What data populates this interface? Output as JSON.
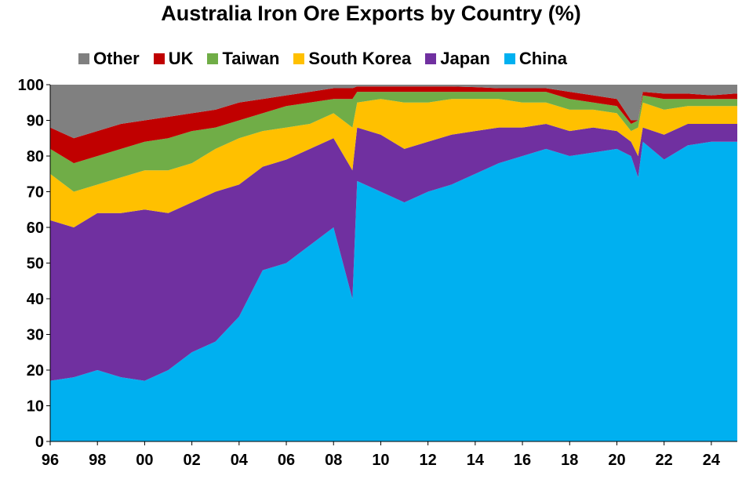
{
  "chart_data": {
    "type": "area",
    "stacked": true,
    "title": "Australia Iron Ore Exports by Country (%)",
    "xlabel": "",
    "ylabel": "",
    "xlim": [
      1996,
      2025.1
    ],
    "ylim": [
      0,
      100
    ],
    "yticks": [
      0,
      10,
      20,
      30,
      40,
      50,
      60,
      70,
      80,
      90,
      100
    ],
    "xtick_labels": [
      "96",
      "98",
      "00",
      "02",
      "04",
      "06",
      "08",
      "10",
      "12",
      "14",
      "16",
      "18",
      "20",
      "22",
      "24"
    ],
    "xtick_years": [
      1996,
      1998,
      2000,
      2002,
      2004,
      2006,
      2008,
      2010,
      2012,
      2014,
      2016,
      2018,
      2020,
      2022,
      2024
    ],
    "legend_position": "top",
    "x": [
      1996,
      1997,
      1998,
      1999,
      2000,
      2001,
      2002,
      2003,
      2004,
      2005,
      2006,
      2007,
      2008,
      2008.8,
      2009,
      2010,
      2011,
      2012,
      2013,
      2014,
      2015,
      2016,
      2017,
      2018,
      2019,
      2020,
      2020.6,
      2020.9,
      2021.1,
      2022,
      2023,
      2024,
      2025
    ],
    "series": [
      {
        "name": "China",
        "color": "#00b0f0",
        "values": [
          17,
          18,
          20,
          18,
          17,
          20,
          25,
          28,
          35,
          48,
          50,
          55,
          60,
          40,
          73,
          70,
          67,
          70,
          72,
          75,
          78,
          80,
          82,
          80,
          81,
          82,
          80,
          74,
          84,
          79,
          83,
          84,
          84
        ]
      },
      {
        "name": "Japan",
        "color": "#7030a0",
        "values": [
          45,
          42,
          44,
          46,
          48,
          44,
          42,
          42,
          37,
          29,
          29,
          27,
          25,
          36,
          15,
          16,
          15,
          14,
          14,
          12,
          10,
          8,
          7,
          7,
          7,
          5,
          4,
          6,
          4,
          7,
          6,
          5,
          5
        ]
      },
      {
        "name": "South Korea",
        "color": "#ffc000",
        "values": [
          13,
          10,
          8,
          10,
          11,
          12,
          11,
          12,
          13,
          10,
          9,
          7,
          7,
          12,
          7,
          10,
          13,
          11,
          10,
          9,
          8,
          7,
          6,
          6,
          5,
          5,
          3,
          8,
          7,
          7,
          5,
          5,
          5
        ]
      },
      {
        "name": "Taiwan",
        "color": "#70ad47",
        "values": [
          7,
          8,
          8,
          8,
          8,
          9,
          9,
          6,
          5,
          5,
          6,
          6,
          4,
          8,
          3,
          2,
          3,
          3,
          2,
          2,
          2,
          3,
          3,
          3,
          2,
          2,
          2,
          2,
          2,
          3,
          2,
          2,
          2
        ]
      },
      {
        "name": "UK",
        "color": "#c00000",
        "values": [
          6,
          7,
          7,
          7,
          6,
          6,
          5,
          5,
          5,
          4,
          3,
          3,
          3,
          3,
          1.5,
          1.5,
          1.5,
          1.5,
          1.5,
          1.3,
          1,
          1,
          1,
          2,
          2,
          2,
          1,
          0,
          1,
          1.5,
          1.5,
          1,
          1.5
        ]
      },
      {
        "name": "Other",
        "color": "#808080",
        "values": [
          12,
          15,
          13,
          11,
          10,
          9,
          8,
          7,
          5,
          4,
          3,
          2,
          1,
          1,
          0.5,
          0.5,
          0.5,
          0.5,
          0.5,
          0.7,
          1,
          1,
          1,
          2,
          3,
          4,
          10,
          10,
          2,
          2.5,
          2.5,
          3,
          2.5
        ]
      }
    ],
    "legend_order": [
      "Other",
      "UK",
      "Taiwan",
      "South Korea",
      "Japan",
      "China"
    ]
  }
}
